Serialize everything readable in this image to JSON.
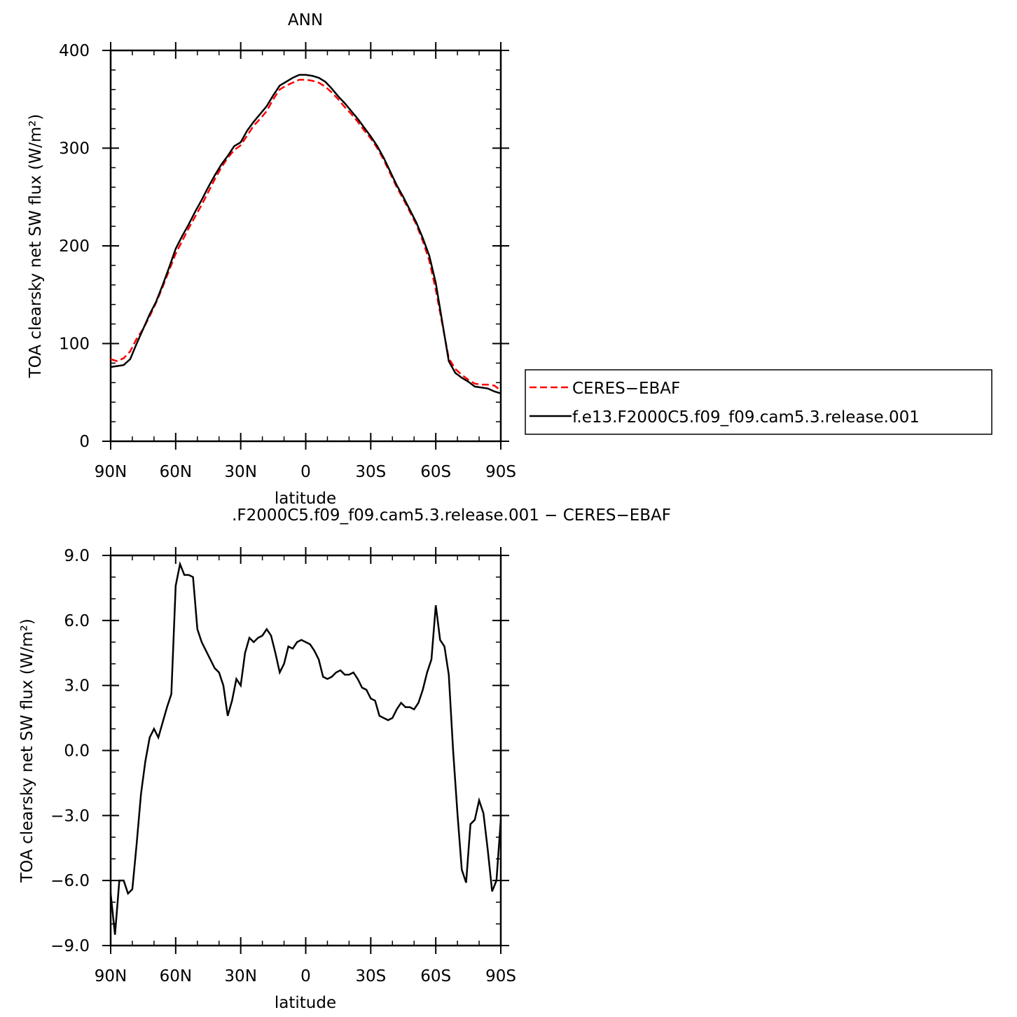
{
  "chart_data": [
    {
      "type": "line",
      "title": "ANN",
      "xlabel": "latitude",
      "ylabel": "TOA clearsky net SW flux (W/m²)",
      "x": [
        90,
        87,
        84,
        81,
        78,
        75,
        72,
        69,
        66,
        63,
        60,
        57,
        54,
        51,
        48,
        45,
        42,
        39,
        36,
        33,
        30,
        27,
        24,
        21,
        18,
        15,
        12,
        9,
        6,
        3,
        0,
        -3,
        -6,
        -9,
        -12,
        -15,
        -18,
        -21,
        -24,
        -27,
        -30,
        -33,
        -36,
        -39,
        -42,
        -45,
        -48,
        -51,
        -54,
        -57,
        -60,
        -63,
        -66,
        -69,
        -72,
        -75,
        -78,
        -81,
        -84,
        -87,
        -90
      ],
      "series": [
        {
          "name": "CERES−EBAF",
          "color": "#ff0000",
          "line_style": "dashed",
          "values": [
            84,
            82,
            85,
            92,
            105,
            115,
            128,
            142,
            158,
            175,
            192,
            205,
            218,
            230,
            242,
            255,
            268,
            280,
            290,
            298,
            303,
            313,
            323,
            330,
            338,
            350,
            360,
            364,
            367,
            370,
            370,
            369,
            367,
            363,
            357,
            350,
            342,
            335,
            327,
            318,
            310,
            300,
            288,
            274,
            260,
            248,
            235,
            222,
            205,
            185,
            155,
            120,
            85,
            74,
            68,
            63,
            59,
            58,
            58,
            57,
            52
          ]
        },
        {
          "name": "f.e13.F2000C5.f09_f09.cam5.3.release.001",
          "color": "#000000",
          "line_style": "solid",
          "values": [
            76,
            77,
            78,
            84,
            100,
            115,
            130,
            143,
            160,
            178,
            197,
            210,
            222,
            235,
            247,
            260,
            272,
            283,
            292,
            302,
            306,
            318,
            327,
            335,
            343,
            354,
            364,
            368,
            372,
            375,
            375,
            374,
            372,
            368,
            361,
            353,
            346,
            338,
            330,
            321,
            312,
            302,
            290,
            276,
            262,
            250,
            237,
            224,
            208,
            190,
            162,
            122,
            82,
            70,
            65,
            61,
            56,
            55,
            54,
            51,
            49
          ]
        }
      ],
      "xlim": [
        90,
        -90
      ],
      "xticks": [
        {
          "value": 90,
          "label": "90N"
        },
        {
          "value": 60,
          "label": "60N"
        },
        {
          "value": 30,
          "label": "30N"
        },
        0,
        {
          "value": -30,
          "label": "30S"
        },
        {
          "value": -60,
          "label": "60S"
        },
        {
          "value": -90,
          "label": "90S"
        }
      ],
      "ylim": [
        0,
        400
      ],
      "yticks": [
        0,
        100,
        200,
        300,
        400
      ],
      "legend": "right"
    },
    {
      "type": "line",
      "title": ".F2000C5.f09_f09.cam5.3.release.001 − CERES−EBAF",
      "xlabel": "latitude",
      "ylabel": "TOA clearsky net SW flux (W/m²)",
      "x": [
        90,
        88,
        86,
        84,
        82,
        80,
        78,
        76,
        74,
        72,
        70,
        68,
        66,
        64,
        62,
        60,
        58,
        56,
        54,
        52,
        50,
        48,
        46,
        44,
        42,
        40,
        38,
        36,
        34,
        32,
        30,
        28,
        26,
        24,
        22,
        20,
        18,
        16,
        14,
        12,
        10,
        8,
        6,
        4,
        2,
        0,
        -2,
        -4,
        -6,
        -8,
        -10,
        -12,
        -14,
        -16,
        -18,
        -20,
        -22,
        -24,
        -26,
        -28,
        -30,
        -32,
        -34,
        -36,
        -38,
        -40,
        -42,
        -44,
        -46,
        -48,
        -50,
        -52,
        -54,
        -56,
        -58,
        -60,
        -62,
        -64,
        -66,
        -68,
        -70,
        -72,
        -74,
        -76,
        -78,
        -80,
        -82,
        -84,
        -86,
        -88,
        -90
      ],
      "color": "#000000",
      "values": [
        -6.6,
        -8.5,
        -6.0,
        -6.0,
        -6.6,
        -6.4,
        -4.3,
        -2.0,
        -0.5,
        0.6,
        1.0,
        0.6,
        1.3,
        2.0,
        2.6,
        7.6,
        8.6,
        8.1,
        8.1,
        8.0,
        5.6,
        5.0,
        4.6,
        4.2,
        3.8,
        3.6,
        3.0,
        1.6,
        2.3,
        3.3,
        3.0,
        4.5,
        5.2,
        5.0,
        5.2,
        5.3,
        5.6,
        5.3,
        4.5,
        3.6,
        4.0,
        4.8,
        4.7,
        5.0,
        5.1,
        5.0,
        4.9,
        4.6,
        4.2,
        3.4,
        3.3,
        3.4,
        3.6,
        3.7,
        3.5,
        3.5,
        3.6,
        3.3,
        2.9,
        2.8,
        2.4,
        2.3,
        1.6,
        1.5,
        1.4,
        1.5,
        1.9,
        2.2,
        2.0,
        2.0,
        1.9,
        2.2,
        2.8,
        3.6,
        4.2,
        6.7,
        5.1,
        4.8,
        3.5,
        0,
        -2.9,
        -5.5,
        -6.1,
        -3.4,
        -3.2,
        -2.3,
        -2.9,
        -4.6,
        -6.5,
        -6.0,
        -3.2
      ],
      "xlim": [
        90,
        -90
      ],
      "xticks": [
        {
          "value": 90,
          "label": "90N"
        },
        {
          "value": 60,
          "label": "60N"
        },
        {
          "value": 30,
          "label": "30N"
        },
        0,
        {
          "value": -30,
          "label": "30S"
        },
        {
          "value": -60,
          "label": "60S"
        },
        {
          "value": -90,
          "label": "90S"
        }
      ],
      "ylim": [
        -9,
        9
      ],
      "yticks": [
        {
          "value": -9,
          "label": "−9.0"
        },
        {
          "value": -6,
          "label": "−6.0"
        },
        {
          "value": -3,
          "label": "−3.0"
        },
        {
          "value": 0,
          "label": "0.0"
        },
        {
          "value": 3,
          "label": "3.0"
        },
        {
          "value": 6,
          "label": "6.0"
        },
        {
          "value": 9,
          "label": "9.0"
        }
      ]
    }
  ]
}
